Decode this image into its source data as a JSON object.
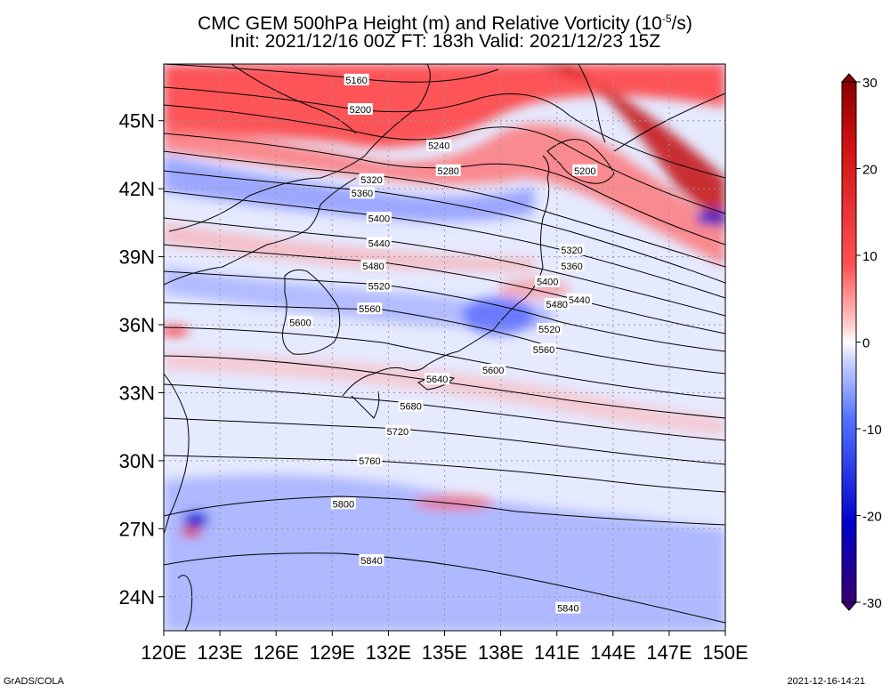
{
  "title": {
    "line1_pre": "CMC GEM 500hPa Height (m) and Relative Vorticity (10",
    "line1_exp": "-5",
    "line1_post": "/s)",
    "line2": "Init: 2021/12/16 00Z  FT: 183h  Valid: 2021/12/23 15Z"
  },
  "map": {
    "lon_range": [
      120,
      150
    ],
    "lat_range": [
      22.5,
      47.5
    ],
    "lat_ticks": [
      {
        "value": 45,
        "label": "45N"
      },
      {
        "value": 42,
        "label": "42N"
      },
      {
        "value": 39,
        "label": "39N"
      },
      {
        "value": 36,
        "label": "36N"
      },
      {
        "value": 33,
        "label": "33N"
      },
      {
        "value": 30,
        "label": "30N"
      },
      {
        "value": 27,
        "label": "27N"
      },
      {
        "value": 24,
        "label": "24N"
      }
    ],
    "lon_ticks": [
      {
        "value": 120,
        "label": "120E"
      },
      {
        "value": 123,
        "label": "123E"
      },
      {
        "value": 126,
        "label": "126E"
      },
      {
        "value": 129,
        "label": "129E"
      },
      {
        "value": 132,
        "label": "132E"
      },
      {
        "value": 135,
        "label": "135E"
      },
      {
        "value": 138,
        "label": "138E"
      },
      {
        "value": 141,
        "label": "141E"
      },
      {
        "value": 144,
        "label": "144E"
      },
      {
        "value": 147,
        "label": "147E"
      },
      {
        "value": 150,
        "label": "150E"
      }
    ],
    "height_contours": [
      {
        "label": "5160",
        "lon": 130.3,
        "lat": 46.8
      },
      {
        "label": "5200",
        "lon": 130.5,
        "lat": 45.5
      },
      {
        "label": "5240",
        "lon": 134.7,
        "lat": 43.9
      },
      {
        "label": "5280",
        "lon": 135.2,
        "lat": 42.8
      },
      {
        "label": "5200",
        "lon": 142.5,
        "lat": 42.8
      },
      {
        "label": "5320",
        "lon": 131.1,
        "lat": 42.4
      },
      {
        "label": "5360",
        "lon": 130.6,
        "lat": 41.8
      },
      {
        "label": "5400",
        "lon": 131.5,
        "lat": 40.7
      },
      {
        "label": "5440",
        "lon": 131.5,
        "lat": 39.6
      },
      {
        "label": "5480",
        "lon": 131.2,
        "lat": 38.6
      },
      {
        "label": "5520",
        "lon": 131.5,
        "lat": 37.7
      },
      {
        "label": "5560",
        "lon": 131.0,
        "lat": 36.7
      },
      {
        "label": "5600",
        "lon": 127.3,
        "lat": 36.1
      },
      {
        "label": "5320",
        "lon": 141.8,
        "lat": 39.3
      },
      {
        "label": "5360",
        "lon": 141.8,
        "lat": 38.6
      },
      {
        "label": "5400",
        "lon": 140.5,
        "lat": 37.9
      },
      {
        "label": "5440",
        "lon": 142.2,
        "lat": 37.1
      },
      {
        "label": "5480",
        "lon": 141.0,
        "lat": 36.9
      },
      {
        "label": "5520",
        "lon": 140.6,
        "lat": 35.8
      },
      {
        "label": "5560",
        "lon": 140.3,
        "lat": 34.9
      },
      {
        "label": "5600",
        "lon": 137.6,
        "lat": 34.0
      },
      {
        "label": "5640",
        "lon": 134.6,
        "lat": 33.6
      },
      {
        "label": "5680",
        "lon": 133.2,
        "lat": 32.4
      },
      {
        "label": "5720",
        "lon": 132.5,
        "lat": 31.3
      },
      {
        "label": "5760",
        "lon": 131.0,
        "lat": 30.0
      },
      {
        "label": "5800",
        "lon": 129.6,
        "lat": 28.1
      },
      {
        "label": "5840",
        "lon": 131.1,
        "lat": 25.6
      },
      {
        "label": "5840",
        "lon": 141.6,
        "lat": 23.5
      }
    ]
  },
  "colorbar": {
    "min": -30,
    "max": 30,
    "ticks": [
      {
        "value": 30,
        "label": "30"
      },
      {
        "value": 20,
        "label": "20"
      },
      {
        "value": 10,
        "label": "10"
      },
      {
        "value": 0,
        "label": "0"
      },
      {
        "value": -10,
        "label": "-10"
      },
      {
        "value": -20,
        "label": "-20"
      },
      {
        "value": -30,
        "label": "-30"
      }
    ],
    "colors": {
      "positive": "#d00000",
      "neutral": "#ffffff",
      "negative": "#1010c8"
    }
  },
  "footer": {
    "left": "GrADS/COLA",
    "right": "2021-12-16-14:21"
  }
}
